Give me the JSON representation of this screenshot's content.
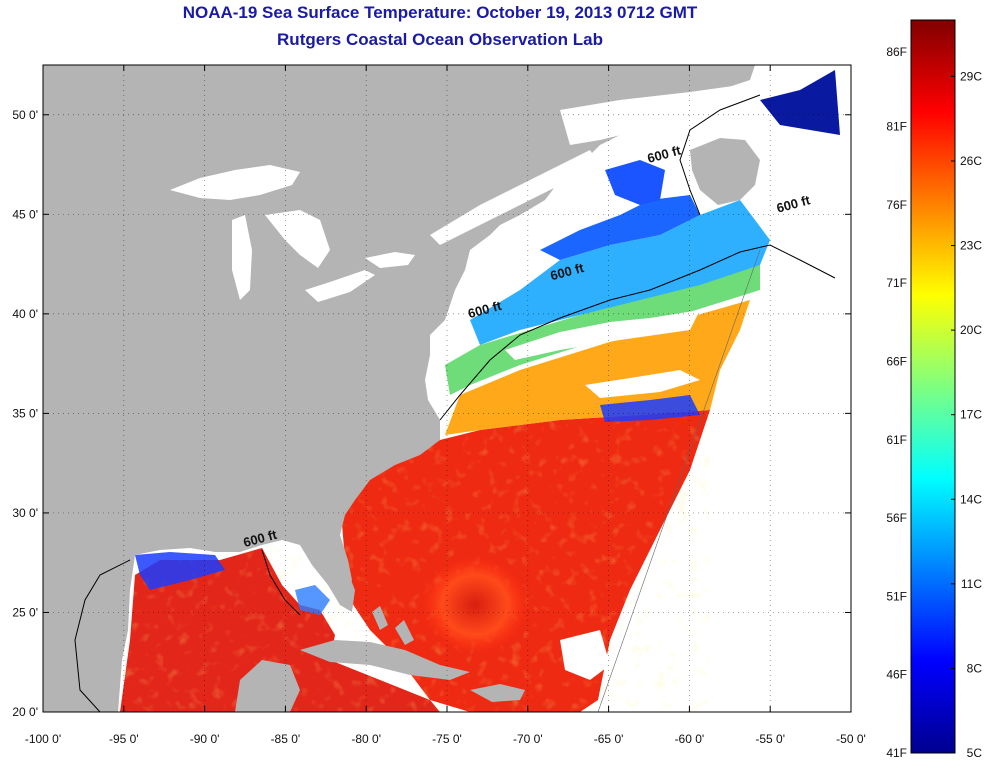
{
  "header": {
    "title_line1": "NOAA-19 Sea Surface Temperature:  October 19, 2013 0712 GMT",
    "title_line2": "Rutgers Coastal Ocean Observation Lab"
  },
  "map": {
    "projection": "lat-lon",
    "lon_range": [
      -100,
      -50
    ],
    "lat_range": [
      20,
      52.5
    ],
    "grid": "dotted",
    "land_color": "#b4b4b4",
    "no_data_color": "#ffffff",
    "x_ticks": [
      {
        "value": -100,
        "label": "-100 0'"
      },
      {
        "value": -95,
        "label": "-95 0'"
      },
      {
        "value": -90,
        "label": "-90 0'"
      },
      {
        "value": -85,
        "label": "-85 0'"
      },
      {
        "value": -80,
        "label": "-80 0'"
      },
      {
        "value": -75,
        "label": "-75 0'"
      },
      {
        "value": -70,
        "label": "-70 0'"
      },
      {
        "value": -65,
        "label": "-65 0'"
      },
      {
        "value": -60,
        "label": "-60 0'"
      },
      {
        "value": -55,
        "label": "-55 0'"
      },
      {
        "value": -50,
        "label": "-50 0'"
      }
    ],
    "y_ticks": [
      {
        "value": 50,
        "label": "50 0'"
      },
      {
        "value": 45,
        "label": "45 0'"
      },
      {
        "value": 40,
        "label": "40 0'"
      },
      {
        "value": 35,
        "label": "35 0'"
      },
      {
        "value": 30,
        "label": "30 0'"
      },
      {
        "value": 25,
        "label": "25 0'"
      },
      {
        "value": 20,
        "label": "20 0'"
      }
    ],
    "contour_labels": [
      {
        "text": "600 ft",
        "lon": -61.5,
        "lat": 47.8
      },
      {
        "text": "600 ft",
        "lon": -53.5,
        "lat": 45.3
      },
      {
        "text": "600 ft",
        "lon": -67.5,
        "lat": 41.9
      },
      {
        "text": "600 ft",
        "lon": -72.6,
        "lat": 40.0
      },
      {
        "text": "600 ft",
        "lon": -86.5,
        "lat": 28.5
      }
    ]
  },
  "colorbar": {
    "f_labels": [
      "86F",
      "81F",
      "76F",
      "71F",
      "66F",
      "61F",
      "56F",
      "51F",
      "46F",
      "41F"
    ],
    "f_values": [
      86,
      81,
      76,
      71,
      66,
      61,
      56,
      51,
      46,
      41
    ],
    "c_labels": [
      "29C",
      "26C",
      "23C",
      "20C",
      "17C",
      "14C",
      "11C",
      "8C",
      "5C"
    ],
    "c_values": [
      29,
      26,
      23,
      20,
      17,
      14,
      11,
      8,
      5
    ],
    "range_c": [
      5,
      31
    ],
    "colormap": [
      "#00008f",
      "#0000ff",
      "#00ffff",
      "#ffff00",
      "#ff0000",
      "#800000"
    ]
  }
}
